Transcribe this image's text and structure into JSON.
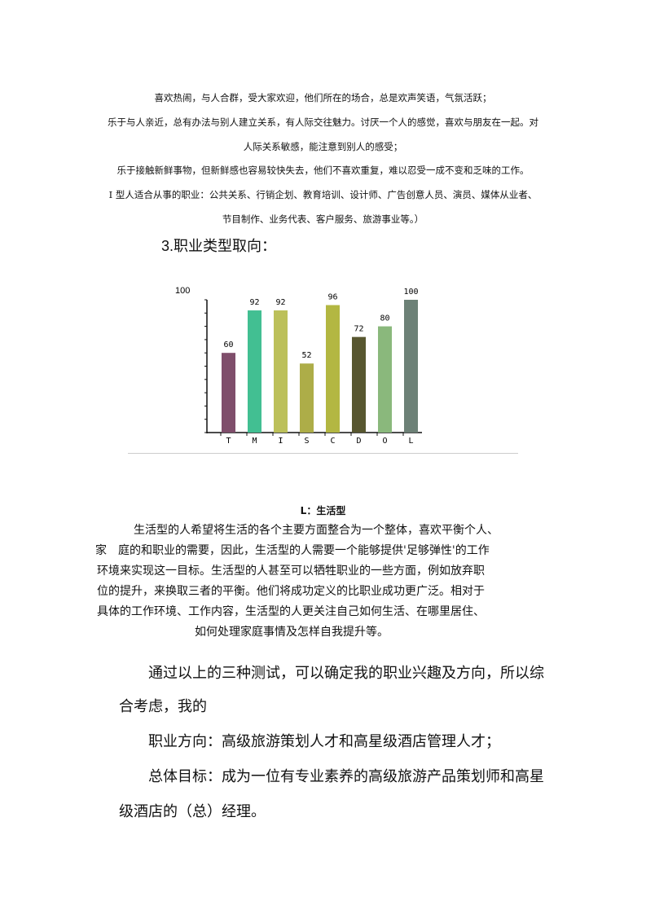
{
  "intro_lines": [
    "喜欢热闹，与人合群，受大家欢迎，他们所在的场合，总是欢声笑语，气氛活跃；",
    "乐于与人亲近，总有办法与别人建立关系，有人际交往魅力。讨厌一个人的感觉，喜欢与朋友在一起。对",
    "人际关系敏感，能注意到别人的感受；",
    "乐于接触新鲜事物，但新鲜感也容易较快失去，他们不喜欢重复，难以忍受一成不变和乏味的工作。",
    "I 型人适合从事的职业：公共关系、行销企划、教育培训、设计师、广告创意人员、演员、媒体从业者、",
    "节目制作、业务代表、客户服务、旅游事业等。）"
  ],
  "section_heading": "3.职业类型取向：",
  "chart_data": {
    "type": "bar",
    "categories": [
      "T",
      "M",
      "I",
      "S",
      "C",
      "D",
      "O",
      "L"
    ],
    "values": [
      60,
      92,
      92,
      52,
      96,
      72,
      80,
      100
    ],
    "ylim": [
      0,
      100
    ],
    "ytick_labels": [
      "100"
    ],
    "colors": [
      "#7f4e6b",
      "#42bf92",
      "#bcc05a",
      "#adad48",
      "#b3b742",
      "#585730",
      "#8ab87c",
      "#6d8177"
    ],
    "grid": false,
    "legend": "none"
  },
  "l_type": {
    "title": "L：生活型",
    "lines": [
      "生活型的人希望将生活的各个主要方面整合为一个整体，喜欢平衡个人、",
      "家　庭的和职业的需要，因此，生活型的人需要一个能够提供'足够弹性'的工作",
      "环境来实现这一目标。生活型的人甚至可以牺牲职业的一些方面，例如放弃职",
      "位的提升，来换取三者的平衡。他们将成功定义的比职业成功更广泛。相对于",
      "具体的工作环境、工作内容，生活型的人更关注自己如何生活、在哪里居住、",
      "如何处理家庭事情及怎样自我提升等。"
    ]
  },
  "conclusion": [
    "通过以上的三种测试，可以确定我的职业兴趣及方向，所以综",
    "合考虑，我的",
    "职业方向：高级旅游策划人才和高星级酒店管理人才；",
    "总体目标：成为一位有专业素养的高级旅游产品策划师和高星",
    "级酒店的（总）经理。"
  ]
}
